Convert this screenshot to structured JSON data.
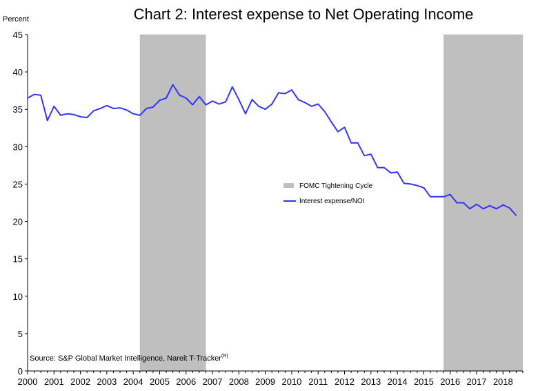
{
  "chart_data": {
    "type": "line",
    "title": "Chart 2: Interest expense to Net Operating Income",
    "ylabel": "Percent",
    "xlabel": "",
    "ylim": [
      0,
      45
    ],
    "yticks": [
      0,
      5,
      10,
      15,
      20,
      25,
      30,
      35,
      40,
      45
    ],
    "xlim": [
      2000.0,
      2018.75
    ],
    "xticks": [
      "2000",
      "2001",
      "2002",
      "2003",
      "2004",
      "2005",
      "2006",
      "2007",
      "2008",
      "2009",
      "2010",
      "2011",
      "2012",
      "2013",
      "2014",
      "2015",
      "2016",
      "2017",
      "2018"
    ],
    "grid": false,
    "legend_position": "center-right",
    "shaded_regions": {
      "name": "FOMC Tightening Cycle",
      "color": "#bfbfbf",
      "ranges": [
        [
          2004.25,
          2006.75
        ],
        [
          2015.75,
          2018.75
        ]
      ]
    },
    "series": [
      {
        "name": "Interest expense/NOI",
        "color": "#3333ff",
        "x": [
          2000.0,
          2000.25,
          2000.5,
          2000.75,
          2001.0,
          2001.25,
          2001.5,
          2001.75,
          2002.0,
          2002.25,
          2002.5,
          2002.75,
          2003.0,
          2003.25,
          2003.5,
          2003.75,
          2004.0,
          2004.25,
          2004.5,
          2004.75,
          2005.0,
          2005.25,
          2005.5,
          2005.75,
          2006.0,
          2006.25,
          2006.5,
          2006.75,
          2007.0,
          2007.25,
          2007.5,
          2007.75,
          2008.0,
          2008.25,
          2008.5,
          2008.75,
          2009.0,
          2009.25,
          2009.5,
          2009.75,
          2010.0,
          2010.25,
          2010.5,
          2010.75,
          2011.0,
          2011.25,
          2011.5,
          2011.75,
          2012.0,
          2012.25,
          2012.5,
          2012.75,
          2013.0,
          2013.25,
          2013.5,
          2013.75,
          2014.0,
          2014.25,
          2014.5,
          2014.75,
          2015.0,
          2015.25,
          2015.5,
          2015.75,
          2016.0,
          2016.25,
          2016.5,
          2016.75,
          2017.0,
          2017.25,
          2017.5,
          2017.75,
          2018.0,
          2018.25,
          2018.5
        ],
        "values": [
          36.5,
          37.0,
          36.9,
          33.5,
          35.4,
          34.2,
          34.4,
          34.3,
          34.0,
          33.9,
          34.8,
          35.1,
          35.5,
          35.1,
          35.2,
          34.9,
          34.4,
          34.2,
          35.1,
          35.3,
          36.2,
          36.5,
          38.3,
          36.9,
          36.5,
          35.6,
          36.7,
          35.6,
          36.1,
          35.7,
          36.0,
          38.0,
          36.3,
          34.4,
          36.3,
          35.4,
          35.0,
          35.7,
          37.2,
          37.1,
          37.6,
          36.3,
          35.9,
          35.4,
          35.7,
          34.7,
          33.3,
          32.0,
          32.6,
          30.5,
          30.5,
          28.8,
          29.0,
          27.2,
          27.2,
          26.5,
          26.6,
          25.1,
          25.0,
          24.8,
          24.5,
          23.3,
          23.3,
          23.3,
          23.6,
          22.5,
          22.5,
          21.7,
          22.3,
          21.7,
          22.1,
          21.7,
          22.2,
          21.8,
          20.8
        ]
      }
    ],
    "annotations": {
      "source_text": "Source: S&P Global Market Intelligence,  Nareit T-Tracker",
      "source_superscript": "(R)"
    }
  }
}
